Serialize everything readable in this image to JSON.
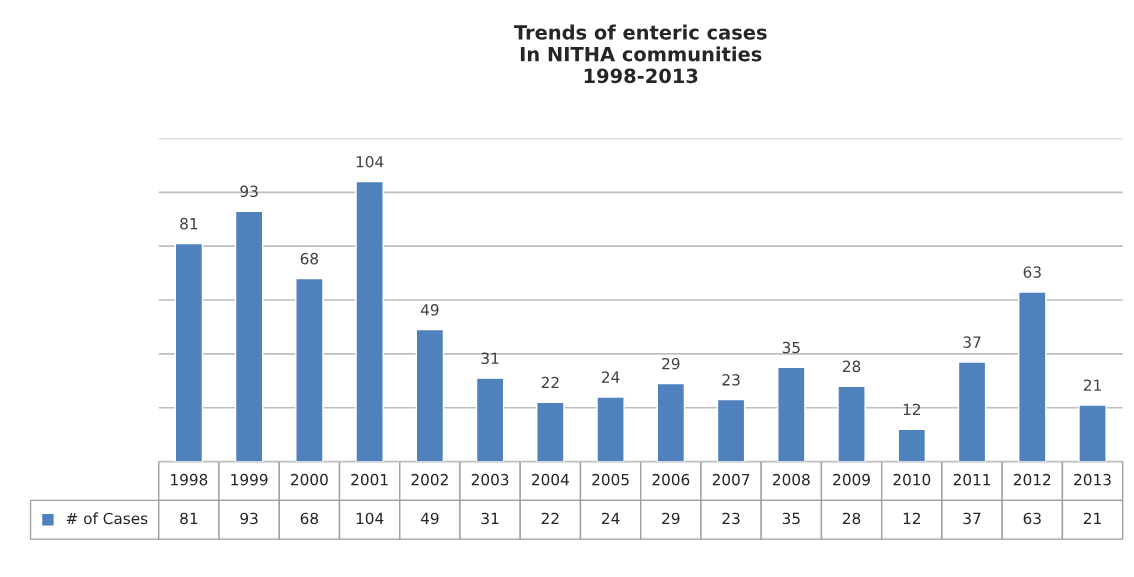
{
  "chart_data": {
    "type": "bar",
    "title": "Trends of enteric cases\nIn NITHA communities\n1998-2013",
    "categories": [
      "1998",
      "1999",
      "2000",
      "2001",
      "2002",
      "2003",
      "2004",
      "2005",
      "2006",
      "2007",
      "2008",
      "2009",
      "2010",
      "2011",
      "2012",
      "2013"
    ],
    "series": [
      {
        "name": "# of Cases",
        "color": "#4f81bd",
        "values": [
          81,
          93,
          68,
          104,
          49,
          31,
          22,
          24,
          29,
          23,
          35,
          28,
          12,
          37,
          63,
          21
        ],
        "value_labels": [
          "81",
          "93",
          "68",
          "104",
          "49",
          "31",
          "22",
          "24",
          "29",
          "23",
          "35",
          "28",
          "12",
          "37",
          "63",
          "21"
        ]
      }
    ],
    "ylim": [
      0,
      120
    ],
    "yticks": [
      {
        "value": 0,
        "label": null
      },
      {
        "value": 20,
        "label": null
      },
      {
        "value": 40,
        "label": null
      },
      {
        "value": 60,
        "label": null
      },
      {
        "value": 80,
        "label": null
      },
      {
        "value": 100,
        "label": null
      },
      {
        "value": 120,
        "label": null
      }
    ],
    "grid": "y",
    "legend": "bottom",
    "annotations": [
      "81",
      "93",
      "68",
      "104",
      "49",
      "31",
      "22",
      "24",
      "29",
      "23",
      "35",
      "28",
      "12",
      "37",
      "63",
      "21"
    ]
  }
}
